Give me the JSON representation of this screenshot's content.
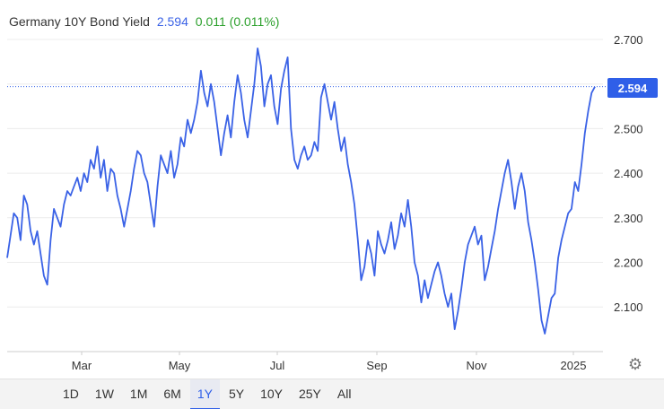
{
  "header": {
    "title": "Germany 10Y Bond Yield",
    "value": "2.594",
    "change": "0.011 (0.011%)"
  },
  "price_tag": "2.594",
  "toolbar": {
    "ranges": [
      "1D",
      "1W",
      "1M",
      "6M",
      "1Y",
      "5Y",
      "10Y",
      "25Y",
      "All"
    ],
    "active": "1Y"
  },
  "settings_icon": "gear-icon",
  "colors": {
    "line": "#3a62e6",
    "up": "#2ca02c",
    "price_tag": "#2f5fe8"
  },
  "chart_data": {
    "type": "line",
    "title": "Germany 10Y Bond Yield",
    "xlabel": "",
    "ylabel": "",
    "x_ticks": [
      "Mar",
      "May",
      "Jul",
      "Sep",
      "Nov",
      "2025"
    ],
    "y_ticks": [
      "2.700",
      "2.600",
      "2.500",
      "2.400",
      "2.300",
      "2.200",
      "2.100"
    ],
    "y_tick_values": [
      2.7,
      2.6,
      2.5,
      2.4,
      2.3,
      2.2,
      2.1
    ],
    "ylim": [
      2.0,
      2.8
    ],
    "grid": true,
    "current_value": 2.594,
    "series": [
      {
        "values": [
          2.21,
          2.26,
          2.31,
          2.3,
          2.25,
          2.35,
          2.33,
          2.27,
          2.24,
          2.27,
          2.22,
          2.17,
          2.15,
          2.25,
          2.32,
          2.3,
          2.28,
          2.33,
          2.36,
          2.35,
          2.37,
          2.39,
          2.36,
          2.4,
          2.38,
          2.43,
          2.41,
          2.46,
          2.39,
          2.43,
          2.36,
          2.41,
          2.4,
          2.35,
          2.32,
          2.28,
          2.32,
          2.36,
          2.41,
          2.45,
          2.44,
          2.4,
          2.38,
          2.33,
          2.28,
          2.37,
          2.44,
          2.42,
          2.4,
          2.45,
          2.39,
          2.42,
          2.48,
          2.46,
          2.52,
          2.49,
          2.52,
          2.56,
          2.63,
          2.58,
          2.55,
          2.6,
          2.56,
          2.5,
          2.44,
          2.49,
          2.53,
          2.48,
          2.56,
          2.62,
          2.58,
          2.52,
          2.48,
          2.54,
          2.6,
          2.68,
          2.64,
          2.55,
          2.6,
          2.62,
          2.55,
          2.51,
          2.59,
          2.63,
          2.66,
          2.5,
          2.43,
          2.41,
          2.44,
          2.46,
          2.43,
          2.44,
          2.47,
          2.45,
          2.57,
          2.6,
          2.56,
          2.52,
          2.56,
          2.5,
          2.45,
          2.48,
          2.42,
          2.38,
          2.33,
          2.25,
          2.16,
          2.19,
          2.25,
          2.22,
          2.17,
          2.27,
          2.24,
          2.22,
          2.25,
          2.29,
          2.23,
          2.26,
          2.31,
          2.28,
          2.34,
          2.28,
          2.2,
          2.17,
          2.11,
          2.16,
          2.12,
          2.15,
          2.18,
          2.2,
          2.17,
          2.13,
          2.1,
          2.13,
          2.05,
          2.09,
          2.14,
          2.2,
          2.24,
          2.26,
          2.28,
          2.24,
          2.26,
          2.16,
          2.19,
          2.23,
          2.27,
          2.32,
          2.36,
          2.4,
          2.43,
          2.38,
          2.32,
          2.37,
          2.4,
          2.36,
          2.29,
          2.25,
          2.2,
          2.14,
          2.07,
          2.04,
          2.08,
          2.12,
          2.13,
          2.21,
          2.25,
          2.28,
          2.31,
          2.32,
          2.38,
          2.36,
          2.42,
          2.49,
          2.54,
          2.58,
          2.594
        ]
      }
    ]
  }
}
